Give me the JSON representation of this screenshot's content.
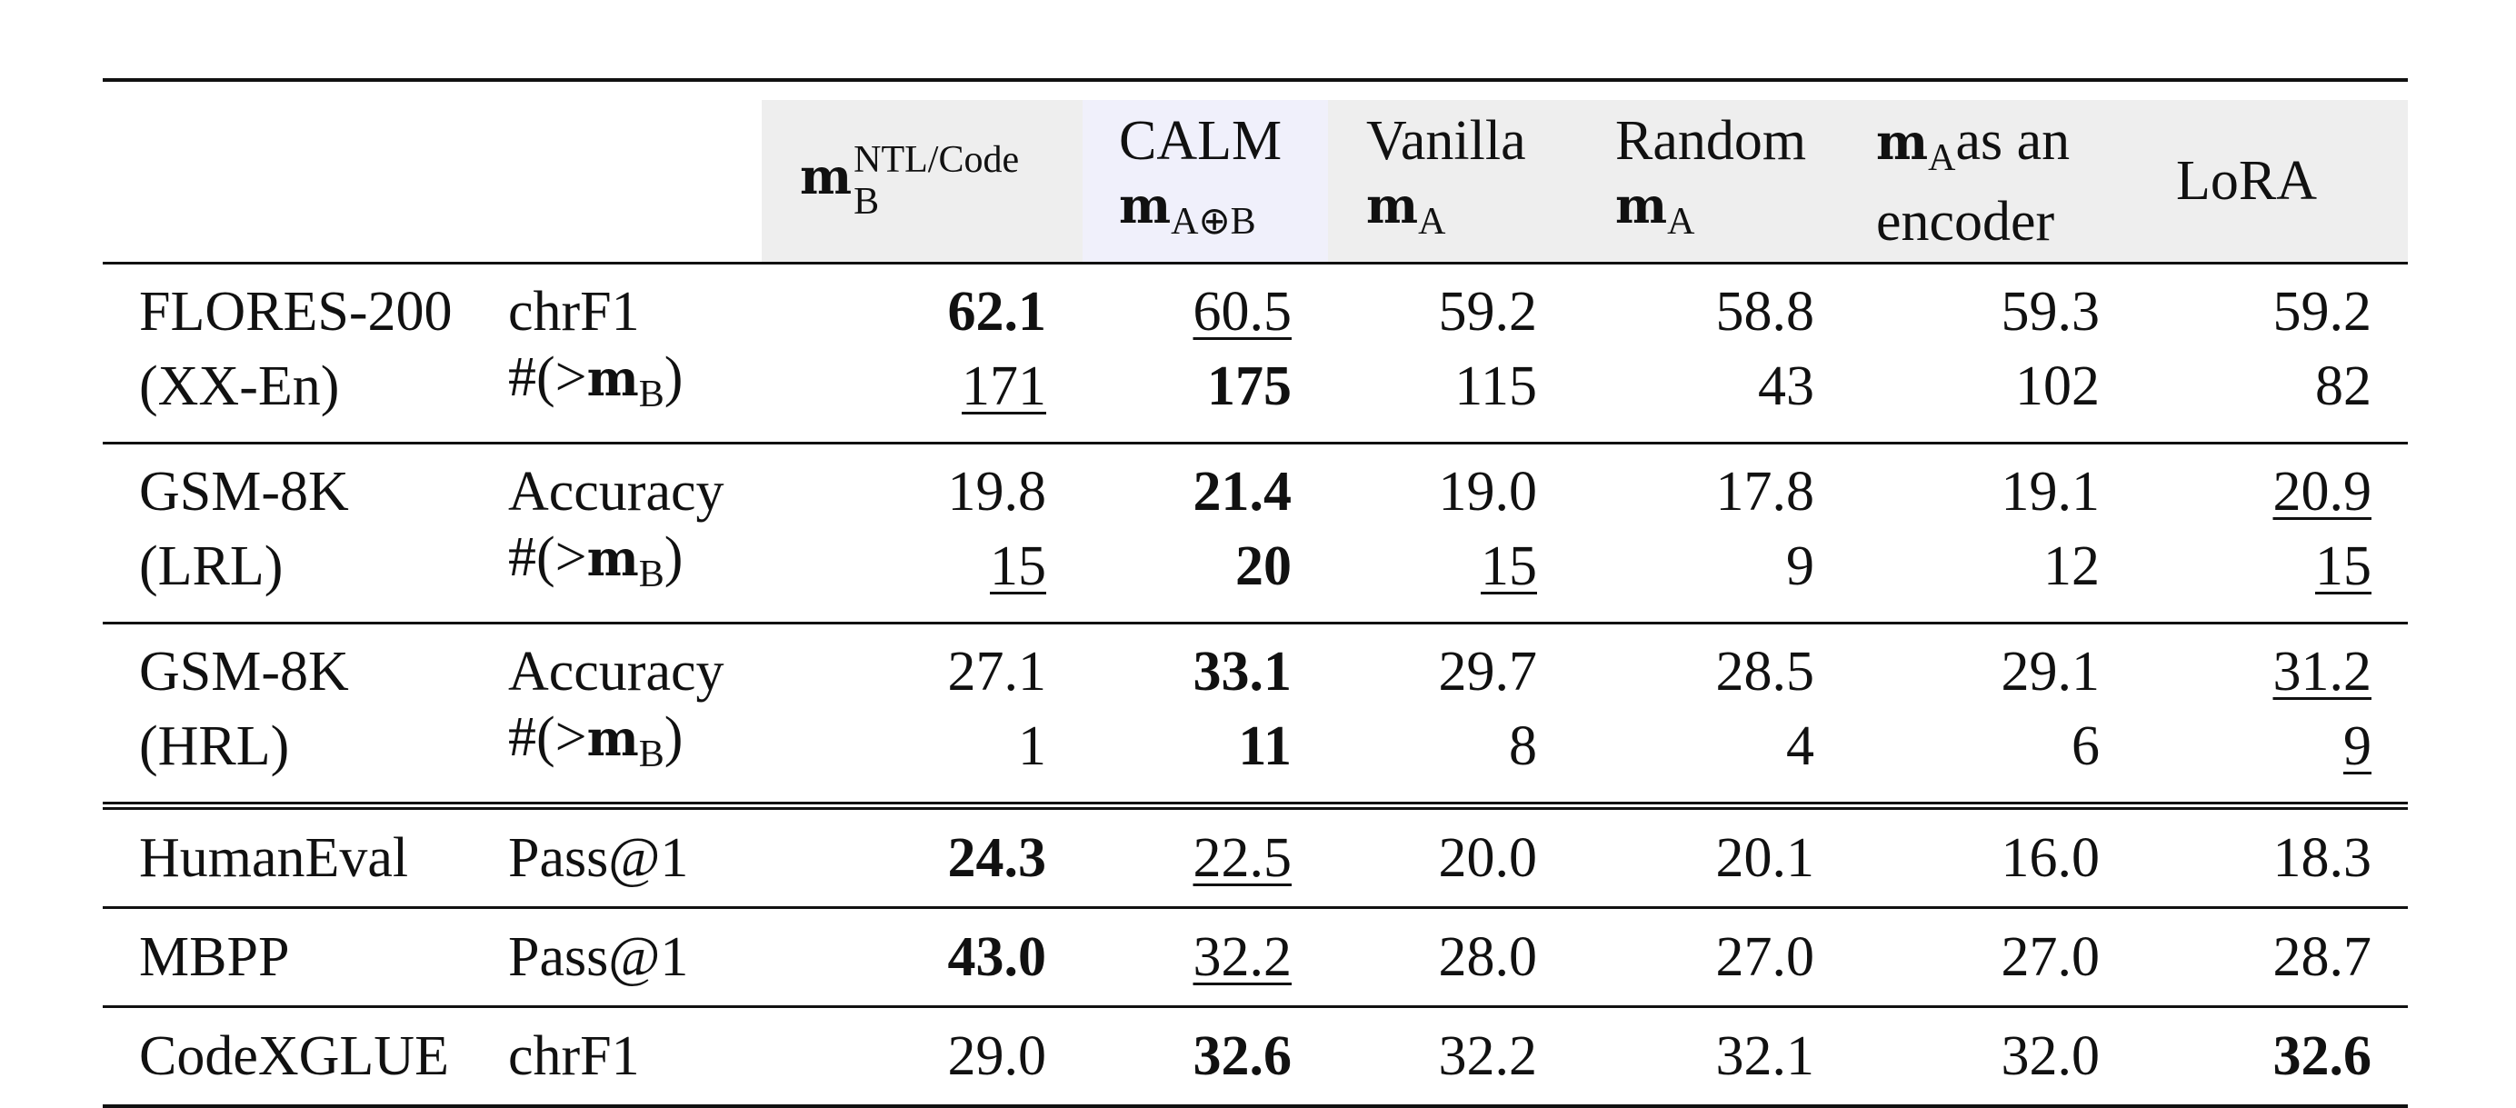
{
  "header": {
    "col_mb_base": "m",
    "col_mb_sub": "B",
    "col_mb_sup": "NTL/Code",
    "col_calm_line1": "CALM",
    "col_calm_m": "m",
    "col_calm_sub": "A⊕B",
    "col_vanilla_line1": "Vanilla",
    "col_vanilla_m": "m",
    "col_vanilla_sub": "A",
    "col_random_line1": "Random",
    "col_random_m": "m",
    "col_random_sub": "A",
    "col_encoder_m": "m",
    "col_encoder_sub": "A",
    "col_encoder_rest": "as an",
    "col_encoder_line2": "encoder",
    "col_lora": "LoRA"
  },
  "metric_mb_prefix": "#(>",
  "metric_mb_m": "m",
  "metric_mb_sub": "B",
  "metric_mb_suffix": ")",
  "rows": {
    "flores": {
      "task1": "FLORES-200",
      "task2": "(XX-En)",
      "metric1": "chrF1",
      "r1": [
        "62.1",
        "60.5",
        "59.2",
        "58.8",
        "59.3",
        "59.2"
      ],
      "r2": [
        "171",
        "175",
        "115",
        "43",
        "102",
        "82"
      ]
    },
    "gsm_lrl": {
      "task1": "GSM-8K",
      "task2": "(LRL)",
      "metric1": "Accuracy",
      "r1": [
        "19.8",
        "21.4",
        "19.0",
        "17.8",
        "19.1",
        "20.9"
      ],
      "r2": [
        "15",
        "20",
        "15",
        "9",
        "12",
        "15"
      ]
    },
    "gsm_hrl": {
      "task1": "GSM-8K",
      "task2": "(HRL)",
      "metric1": "Accuracy",
      "r1": [
        "27.1",
        "33.1",
        "29.7",
        "28.5",
        "29.1",
        "31.2"
      ],
      "r2": [
        "1",
        "11",
        "8",
        "4",
        "6",
        "9"
      ]
    },
    "humaneval": {
      "task": "HumanEval",
      "metric": "Pass@1",
      "r": [
        "24.3",
        "22.5",
        "20.0",
        "20.1",
        "16.0",
        "18.3"
      ]
    },
    "mbpp": {
      "task": "MBPP",
      "metric": "Pass@1",
      "r": [
        "43.0",
        "32.2",
        "28.0",
        "27.0",
        "27.0",
        "28.7"
      ]
    },
    "codexglue": {
      "task": "CodeXGLUE",
      "metric": "chrF1",
      "r": [
        "29.0",
        "32.6",
        "32.2",
        "32.1",
        "32.0",
        "32.6"
      ]
    }
  }
}
